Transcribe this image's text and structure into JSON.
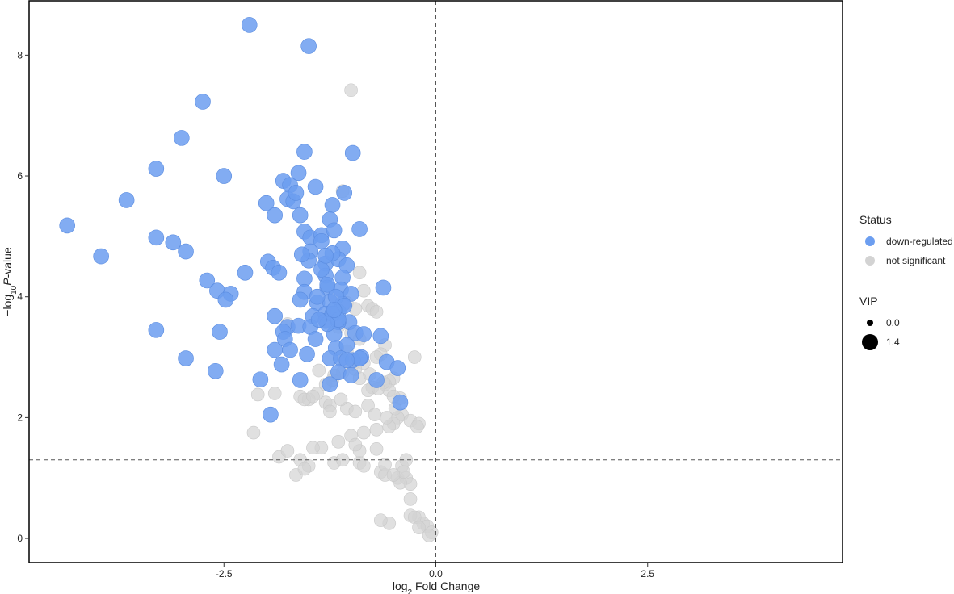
{
  "chart_data": {
    "type": "scatter",
    "title": "",
    "xlabel": "log2 Fold Change",
    "xlabel_parts": {
      "pre": "log",
      "sub": "2",
      "post": " Fold Change"
    },
    "ylabel": "−log10 P-value",
    "ylabel_parts": {
      "pre": "−log",
      "sub": "10",
      "italic": "P",
      "post": "-value"
    },
    "xlim": [
      -4.8,
      4.8
    ],
    "ylim": [
      -0.4,
      8.9
    ],
    "x_ticks": [
      -2.5,
      0.0,
      2.5
    ],
    "x_tick_labels": [
      "-2.5",
      "0.0",
      "2.5"
    ],
    "y_ticks": [
      0,
      2,
      4,
      6,
      8
    ],
    "y_tick_labels": [
      "0",
      "2",
      "4",
      "6",
      "8"
    ],
    "vline": 0,
    "hline": 1.3,
    "grid": false,
    "legend": {
      "position": "right",
      "status_title": "Status",
      "status_items": [
        {
          "label": "down-regulated",
          "color": "#6C9EF0"
        },
        {
          "label": "not significant",
          "color": "#D3D3D3"
        }
      ],
      "size_title": "VIP",
      "size_items": [
        {
          "label": "0.0",
          "value": 0.0
        },
        {
          "label": "1.4",
          "value": 1.4
        }
      ]
    },
    "series": [
      {
        "name": "down-regulated",
        "color": "#6C9EF0",
        "x": [
          -2.2,
          -1.5,
          -2.75,
          -3.0,
          -1.55,
          -0.98,
          -3.3,
          -2.5,
          -1.8,
          -1.72,
          -1.62,
          -1.42,
          -1.08,
          -3.65,
          -2.0,
          -1.75,
          -1.68,
          -1.65,
          -1.22,
          -4.35,
          -1.9,
          -1.6,
          -1.25,
          -0.9,
          -3.3,
          -1.55,
          -1.48,
          -1.35,
          -1.2,
          -3.1,
          -2.95,
          -1.48,
          -1.35,
          -1.1,
          -3.95,
          -1.98,
          -1.92,
          -1.85,
          -1.5,
          -1.3,
          -1.15,
          -1.05,
          -2.25,
          -1.55,
          -1.3,
          -1.1,
          -2.7,
          -2.58,
          -2.42,
          -1.55,
          -1.28,
          -1.12,
          -1.0,
          -0.62,
          -2.48,
          -1.6,
          -1.4,
          -1.25,
          -1.1,
          -1.9,
          -1.45,
          -1.3,
          -1.15,
          -1.02,
          -1.75,
          -1.62,
          -1.48,
          -1.3,
          -1.15,
          -3.3,
          -2.55,
          -1.8,
          -1.42,
          -1.2,
          -0.95,
          -0.85,
          -0.65,
          -1.78,
          -1.9,
          -1.72,
          -1.52,
          -1.18,
          -1.05,
          -0.88,
          -2.95,
          -1.82,
          -1.25,
          -1.12,
          -0.98,
          -0.9,
          -0.58,
          -0.45,
          -2.6,
          -1.6,
          -1.15,
          -1.0,
          -0.7,
          -2.07,
          -1.25,
          -0.42,
          -1.95,
          -1.05,
          -1.4,
          -1.35,
          -1.28,
          -1.18,
          -1.08,
          -1.22,
          -1.3,
          -1.22,
          -1.15,
          -1.58,
          -1.2,
          -1.28,
          -1.38
        ],
        "y": [
          8.5,
          8.15,
          7.23,
          6.63,
          6.4,
          6.38,
          6.12,
          6.0,
          5.92,
          5.85,
          6.05,
          5.82,
          5.72,
          5.6,
          5.55,
          5.62,
          5.58,
          5.72,
          5.52,
          5.18,
          5.35,
          5.35,
          5.28,
          5.12,
          4.98,
          5.08,
          4.98,
          5.02,
          5.1,
          4.9,
          4.75,
          4.75,
          4.92,
          4.8,
          4.67,
          4.58,
          4.48,
          4.4,
          4.6,
          4.55,
          4.62,
          4.52,
          4.4,
          4.3,
          4.35,
          4.32,
          4.27,
          4.1,
          4.05,
          4.08,
          4.15,
          4.12,
          4.05,
          4.15,
          3.95,
          3.95,
          3.9,
          3.92,
          3.88,
          3.68,
          3.68,
          3.72,
          3.75,
          3.58,
          3.5,
          3.52,
          3.5,
          3.6,
          3.58,
          3.45,
          3.42,
          3.42,
          3.3,
          3.38,
          3.4,
          3.38,
          3.35,
          3.3,
          3.12,
          3.12,
          3.05,
          3.15,
          3.2,
          3.0,
          2.98,
          2.88,
          2.98,
          2.98,
          2.95,
          2.98,
          2.92,
          2.82,
          2.77,
          2.62,
          2.75,
          2.7,
          2.62,
          2.63,
          2.55,
          2.25,
          2.05,
          2.95,
          4.0,
          4.45,
          4.2,
          4.0,
          3.85,
          4.72,
          4.68,
          3.72,
          3.62,
          4.7,
          3.78,
          3.55,
          3.62
        ]
      },
      {
        "name": "not significant",
        "color": "#D3D3D3",
        "x": [
          -1.0,
          -1.1,
          -0.9,
          -0.85,
          -1.2,
          -1.05,
          -0.95,
          -0.8,
          -0.75,
          -0.7,
          -1.3,
          -1.15,
          -1.0,
          -0.9,
          -0.6,
          -0.65,
          -0.7,
          -0.85,
          -0.95,
          -1.1,
          -1.2,
          -0.5,
          -0.55,
          -0.6,
          -0.75,
          -0.8,
          -1.4,
          -1.6,
          -1.5,
          -1.3,
          -1.25,
          -1.05,
          -0.95,
          -0.4,
          -0.45,
          -0.3,
          -0.5,
          -0.55,
          -0.7,
          -0.85,
          -1.0,
          -1.15,
          -1.35,
          -2.1,
          -1.9,
          -1.55,
          -1.45,
          -1.25,
          -0.25,
          -0.2,
          -2.15,
          -1.85,
          -1.75,
          -1.6,
          -1.5,
          -1.2,
          -1.1,
          -0.9,
          -0.85,
          -0.65,
          -0.6,
          -0.45,
          -0.4,
          -0.35,
          -0.3,
          -0.3,
          -0.2,
          -0.15,
          -0.1,
          -0.05,
          -0.08,
          -0.55,
          -0.65,
          -0.3,
          -0.25,
          -0.2,
          -0.42,
          -0.38,
          -0.35,
          -1.65,
          -0.9,
          -1.55,
          -1.45,
          -0.95,
          -0.7,
          -0.6,
          -0.5,
          -1.3,
          -1.12,
          -0.8,
          -0.72,
          -0.48,
          -0.58,
          -0.9,
          -0.55,
          -0.22,
          -1.05,
          -0.98,
          -0.78,
          -0.62,
          -0.42,
          -1.22,
          -1.38,
          -1.08,
          -0.68,
          -0.5,
          -1.75
        ],
        "y": [
          7.42,
          5.75,
          4.4,
          4.1,
          4.0,
          3.9,
          3.8,
          3.85,
          3.8,
          3.75,
          3.6,
          3.5,
          3.4,
          3.3,
          3.2,
          3.05,
          3.0,
          2.9,
          2.8,
          2.75,
          2.7,
          2.65,
          2.6,
          2.55,
          2.5,
          2.45,
          2.4,
          2.35,
          2.3,
          2.25,
          2.2,
          2.15,
          2.1,
          2.05,
          2.0,
          1.95,
          1.9,
          1.85,
          1.8,
          1.75,
          1.7,
          1.6,
          1.5,
          2.38,
          2.4,
          2.3,
          2.35,
          2.1,
          3.0,
          1.9,
          1.75,
          1.35,
          1.45,
          1.3,
          1.2,
          1.25,
          1.3,
          1.25,
          1.2,
          1.1,
          1.05,
          1.0,
          1.2,
          1.0,
          0.9,
          0.65,
          0.35,
          0.25,
          0.2,
          0.1,
          0.05,
          0.25,
          0.3,
          0.38,
          0.35,
          0.18,
          0.92,
          1.1,
          1.3,
          1.05,
          1.45,
          1.15,
          1.5,
          1.55,
          1.48,
          1.22,
          1.05,
          2.55,
          2.3,
          2.2,
          2.05,
          2.15,
          2.0,
          2.65,
          2.45,
          1.85,
          3.1,
          2.88,
          2.72,
          2.58,
          2.32,
          2.62,
          2.78,
          2.95,
          2.48,
          2.35,
          3.55
        ]
      }
    ]
  }
}
